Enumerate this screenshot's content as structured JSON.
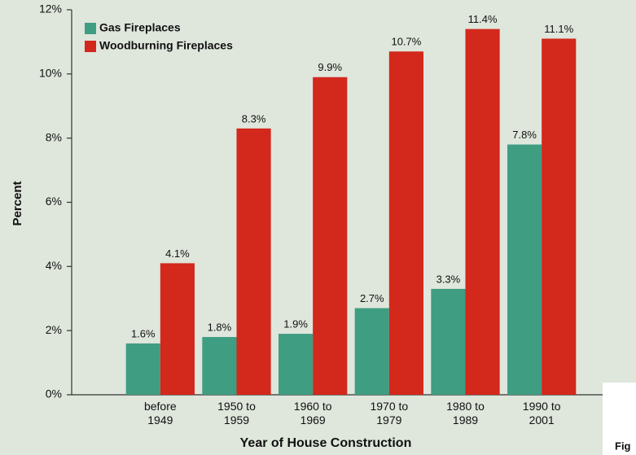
{
  "chart_data": {
    "type": "bar",
    "categories": [
      "before 1949",
      "1950 to 1959",
      "1960 to 1969",
      "1970 to 1979",
      "1980 to 1989",
      "1990 to 2001"
    ],
    "series": [
      {
        "name": "Gas Fireplaces",
        "color": "#3f9d82",
        "values": [
          1.6,
          1.8,
          1.9,
          2.7,
          3.3,
          7.8
        ],
        "value_labels": [
          "1.6%",
          "1.8%",
          "1.9%",
          "2.7%",
          "3.3%",
          "7.8%"
        ]
      },
      {
        "name": "Woodburning Fireplaces",
        "color": "#d3281c",
        "values": [
          4.1,
          8.3,
          9.9,
          10.7,
          11.4,
          11.1
        ],
        "value_labels": [
          "4.1%",
          "8.3%",
          "9.9%",
          "10.7%",
          "11.4%",
          "11.1%"
        ]
      }
    ],
    "ylim": [
      0,
      12
    ],
    "yticks": [
      {
        "value": 0,
        "label": "0%"
      },
      {
        "value": 2,
        "label": "2%"
      },
      {
        "value": 4,
        "label": "4%"
      },
      {
        "value": 6,
        "label": "6%"
      },
      {
        "value": 8,
        "label": "8%"
      },
      {
        "value": 10,
        "label": "10%"
      },
      {
        "value": 12,
        "label": "12%"
      }
    ],
    "ylabel": "Percent",
    "xlabel": "Year of House Construction",
    "legend": "upper left",
    "caption": "Fig"
  }
}
